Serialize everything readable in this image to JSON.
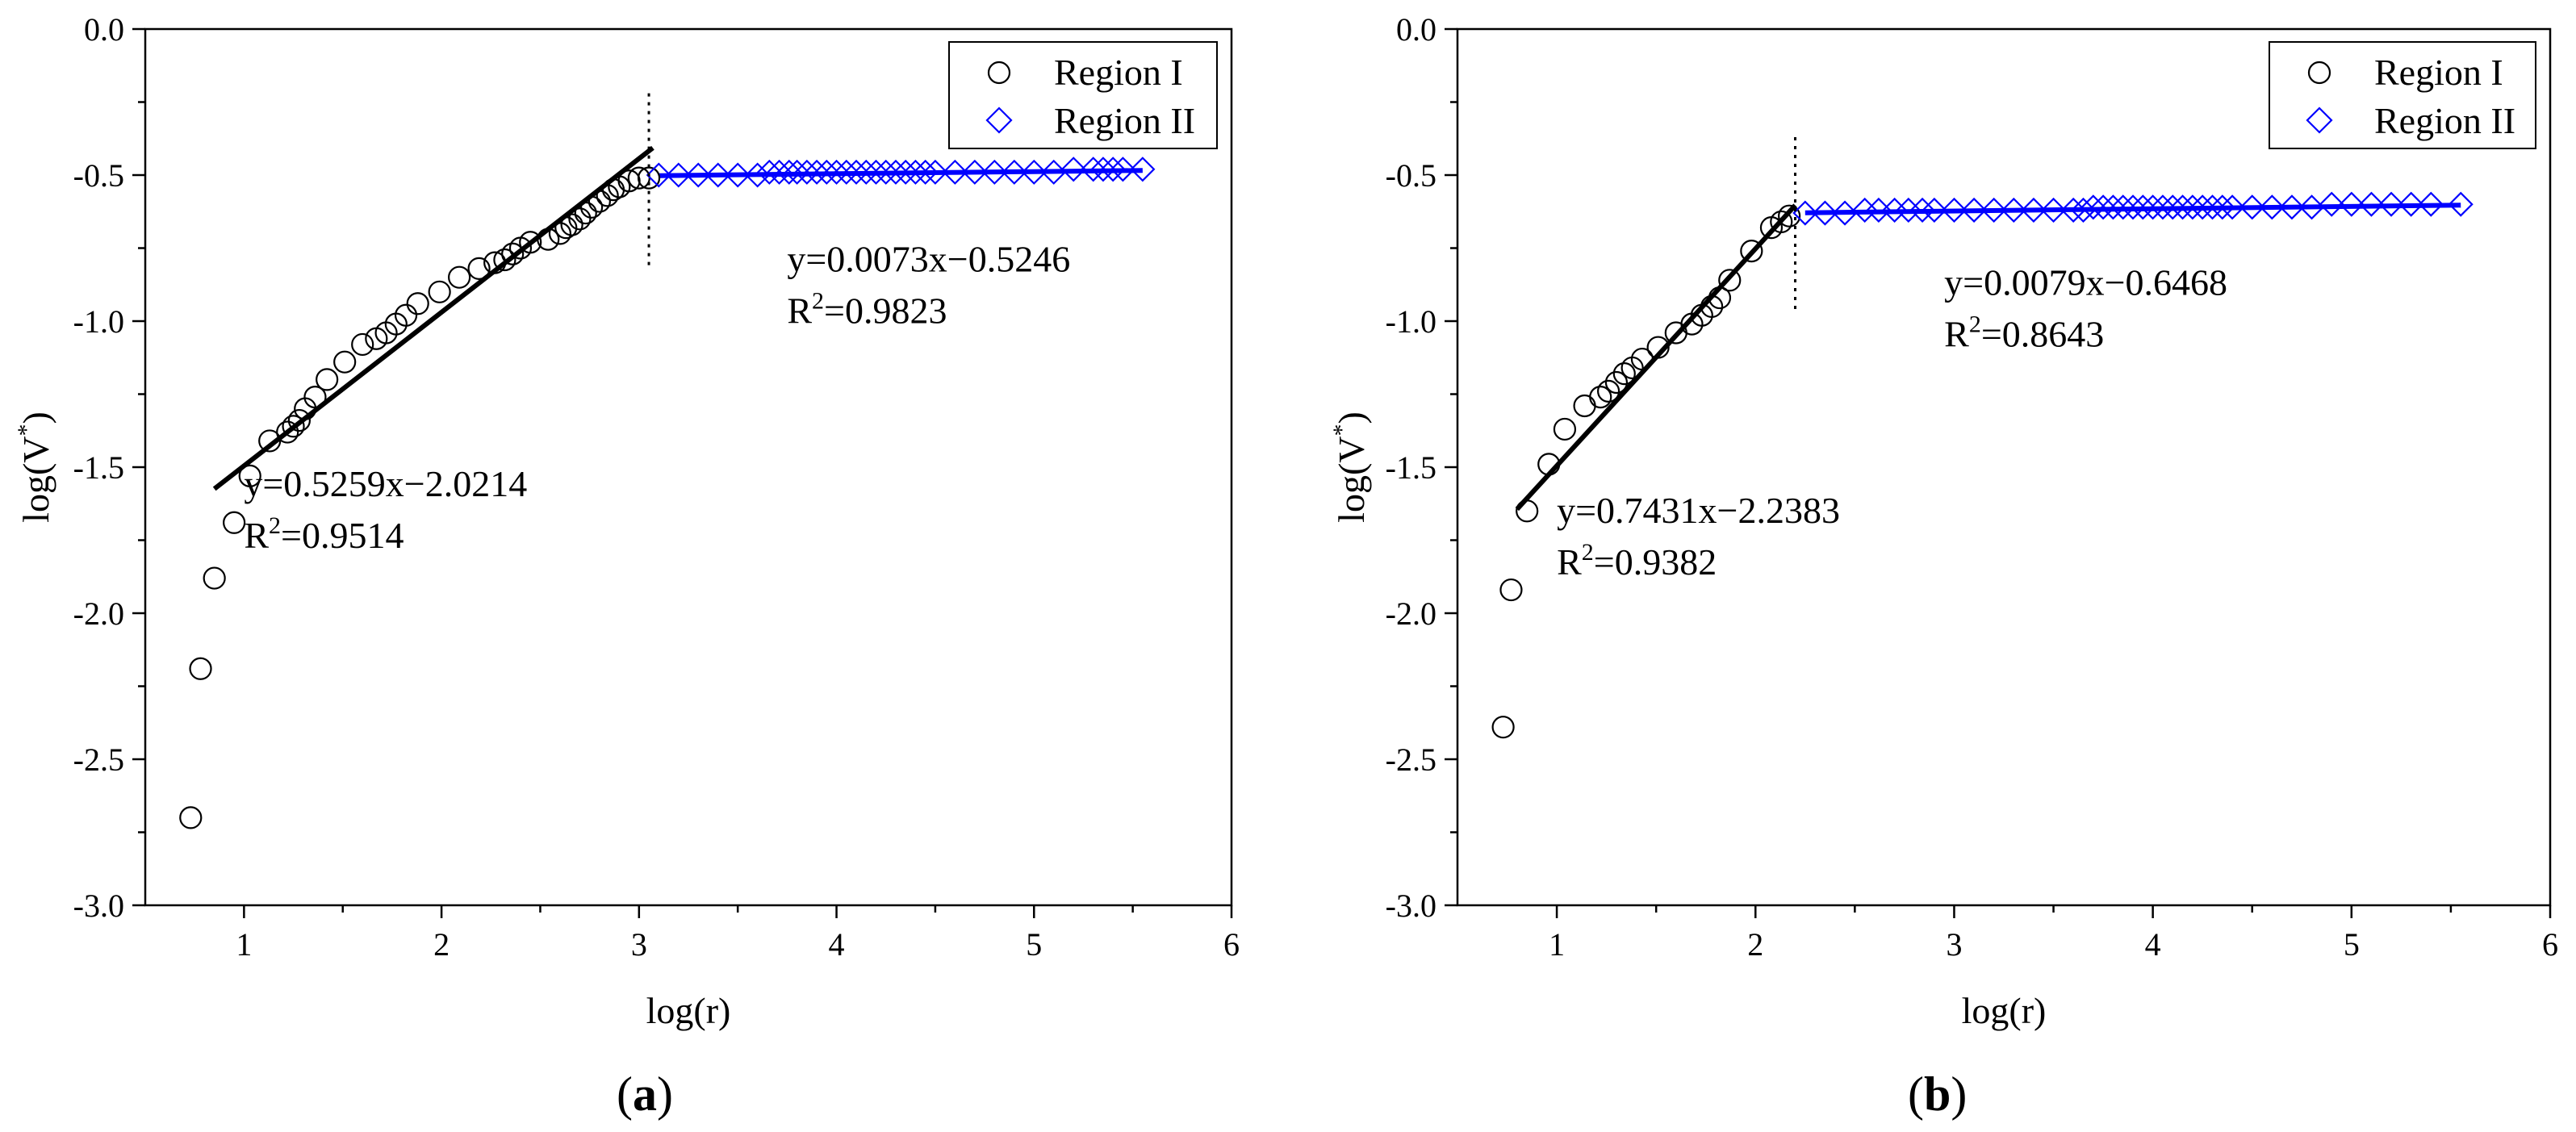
{
  "chart_data": [
    {
      "type": "scatter",
      "panel_label": "(a)",
      "panel_label_bold": "a",
      "xlabel": "log(r)",
      "ylabel_base": "log(V",
      "ylabel_sup": "*",
      "ylabel_close": ")",
      "xlim": [
        0.5,
        6
      ],
      "ylim": [
        -3.0,
        0.0
      ],
      "xticks": [
        1,
        2,
        3,
        4,
        5,
        6
      ],
      "yticks": [
        0.0,
        -0.5,
        -1.0,
        -1.5,
        -2.0,
        -2.5,
        -3.0
      ],
      "xtick_labels": [
        "1",
        "2",
        "3",
        "4",
        "5",
        "6"
      ],
      "ytick_labels": [
        "0.0",
        "-0.5",
        "-1.0",
        "-1.5",
        "-2.0",
        "-2.5",
        "-3.0"
      ],
      "grid": false,
      "legend_position": "top-right",
      "boundary_x": 3.05,
      "boundary_y": [
        -0.82,
        -0.22
      ],
      "series": [
        {
          "name": "Region I",
          "marker": "circle",
          "color": "#000000",
          "x": [
            0.73,
            0.78,
            0.85,
            0.95,
            1.03,
            1.13,
            1.22,
            1.25,
            1.28,
            1.31,
            1.36,
            1.42,
            1.51,
            1.6,
            1.67,
            1.72,
            1.77,
            1.82,
            1.88,
            1.99,
            2.09,
            2.19,
            2.27,
            2.32,
            2.36,
            2.4,
            2.45,
            2.54,
            2.6,
            2.63,
            2.66,
            2.7,
            2.73,
            2.76,
            2.8,
            2.84,
            2.87,
            2.9,
            2.95,
            3.0,
            3.05
          ],
          "y": [
            -2.7,
            -2.19,
            -1.88,
            -1.69,
            -1.53,
            -1.41,
            -1.38,
            -1.36,
            -1.34,
            -1.3,
            -1.26,
            -1.2,
            -1.14,
            -1.08,
            -1.06,
            -1.04,
            -1.01,
            -0.98,
            -0.94,
            -0.9,
            -0.85,
            -0.82,
            -0.8,
            -0.79,
            -0.77,
            -0.75,
            -0.73,
            -0.72,
            -0.7,
            -0.68,
            -0.67,
            -0.65,
            -0.63,
            -0.61,
            -0.59,
            -0.57,
            -0.55,
            -0.54,
            -0.52,
            -0.51,
            -0.51
          ]
        },
        {
          "name": "Region II",
          "marker": "diamond",
          "color": "#0000ff",
          "x": [
            3.1,
            3.2,
            3.3,
            3.4,
            3.5,
            3.6,
            3.66,
            3.71,
            3.76,
            3.8,
            3.85,
            3.9,
            3.95,
            4.0,
            4.05,
            4.1,
            4.15,
            4.2,
            4.25,
            4.3,
            4.35,
            4.4,
            4.45,
            4.5,
            4.6,
            4.7,
            4.8,
            4.9,
            5.0,
            5.1,
            5.2,
            5.3,
            5.35,
            5.4,
            5.45,
            5.55
          ],
          "y": [
            -0.5,
            -0.5,
            -0.5,
            -0.5,
            -0.5,
            -0.5,
            -0.49,
            -0.49,
            -0.49,
            -0.49,
            -0.49,
            -0.49,
            -0.49,
            -0.49,
            -0.49,
            -0.49,
            -0.49,
            -0.49,
            -0.49,
            -0.49,
            -0.49,
            -0.49,
            -0.49,
            -0.49,
            -0.49,
            -0.49,
            -0.49,
            -0.49,
            -0.49,
            -0.49,
            -0.48,
            -0.48,
            -0.48,
            -0.48,
            -0.48,
            -0.48
          ]
        }
      ],
      "fits": [
        {
          "slope": 0.5259,
          "intercept": -2.0214,
          "x_range": [
            0.85,
            3.07
          ],
          "color": "#000000",
          "eq": "y=0.5259x−2.0214",
          "r2_prefix": "R",
          "r2_sup": "2",
          "r2_value": "=0.9514",
          "label_at": [
            1.0,
            -1.6
          ]
        },
        {
          "slope": 0.0073,
          "intercept": -0.5246,
          "x_range": [
            3.1,
            5.55
          ],
          "color": "#0000ff",
          "eq": "y=0.0073x−0.5246",
          "r2_prefix": "R",
          "r2_sup": "2",
          "r2_value": "=0.9823",
          "label_at": [
            3.75,
            -0.83
          ]
        }
      ]
    },
    {
      "type": "scatter",
      "panel_label": "(b)",
      "panel_label_bold": "b",
      "xlabel": "log(r)",
      "ylabel_base": "log(V",
      "ylabel_sup": "*",
      "ylabel_close": ")",
      "xlim": [
        0.5,
        6
      ],
      "ylim": [
        -3.0,
        0.0
      ],
      "xticks": [
        1,
        2,
        3,
        4,
        5,
        6
      ],
      "yticks": [
        0.0,
        -0.5,
        -1.0,
        -1.5,
        -2.0,
        -2.5,
        -3.0
      ],
      "xtick_labels": [
        "1",
        "2",
        "3",
        "4",
        "5",
        "6"
      ],
      "ytick_labels": [
        "0.0",
        "-0.5",
        "-1.0",
        "-1.5",
        "-2.0",
        "-2.5",
        "-3.0"
      ],
      "grid": false,
      "legend_position": "top-right",
      "boundary_x": 2.2,
      "boundary_y": [
        -0.96,
        -0.37
      ],
      "series": [
        {
          "name": "Region I",
          "marker": "circle",
          "color": "#000000",
          "x": [
            0.73,
            0.77,
            0.85,
            0.96,
            1.04,
            1.14,
            1.22,
            1.26,
            1.3,
            1.34,
            1.38,
            1.43,
            1.51,
            1.6,
            1.68,
            1.73,
            1.78,
            1.82,
            1.87,
            1.98,
            2.08,
            2.13,
            2.17
          ],
          "y": [
            -2.39,
            -1.92,
            -1.65,
            -1.49,
            -1.37,
            -1.29,
            -1.26,
            -1.24,
            -1.21,
            -1.18,
            -1.16,
            -1.13,
            -1.09,
            -1.04,
            -1.01,
            -0.98,
            -0.95,
            -0.92,
            -0.86,
            -0.76,
            -0.68,
            -0.66,
            -0.64
          ]
        },
        {
          "name": "Region II",
          "marker": "diamond",
          "color": "#0000ff",
          "x": [
            2.25,
            2.35,
            2.45,
            2.55,
            2.62,
            2.7,
            2.77,
            2.84,
            2.9,
            3.0,
            3.1,
            3.2,
            3.3,
            3.4,
            3.5,
            3.6,
            3.65,
            3.7,
            3.75,
            3.8,
            3.85,
            3.9,
            3.95,
            4.0,
            4.05,
            4.1,
            4.15,
            4.2,
            4.25,
            4.3,
            4.35,
            4.4,
            4.5,
            4.6,
            4.7,
            4.8,
            4.9,
            5.0,
            5.1,
            5.2,
            5.3,
            5.4,
            5.55
          ],
          "y": [
            -0.63,
            -0.63,
            -0.63,
            -0.62,
            -0.62,
            -0.62,
            -0.62,
            -0.62,
            -0.62,
            -0.62,
            -0.62,
            -0.62,
            -0.62,
            -0.62,
            -0.62,
            -0.62,
            -0.62,
            -0.61,
            -0.61,
            -0.61,
            -0.61,
            -0.61,
            -0.61,
            -0.61,
            -0.61,
            -0.61,
            -0.61,
            -0.61,
            -0.61,
            -0.61,
            -0.61,
            -0.61,
            -0.61,
            -0.61,
            -0.61,
            -0.61,
            -0.6,
            -0.6,
            -0.6,
            -0.6,
            -0.6,
            -0.6,
            -0.6
          ]
        }
      ],
      "fits": [
        {
          "slope": 0.7431,
          "intercept": -2.2383,
          "x_range": [
            0.8,
            2.2
          ],
          "color": "#000000",
          "eq": "y=0.7431x−2.2383",
          "r2_prefix": "R",
          "r2_sup": "2",
          "r2_value": "=0.9382",
          "label_at": [
            1.0,
            -1.69
          ]
        },
        {
          "slope": 0.0079,
          "intercept": -0.6468,
          "x_range": [
            2.25,
            5.55
          ],
          "color": "#0000ff",
          "eq": "y=0.0079x−0.6468",
          "r2_prefix": "R",
          "r2_sup": "2",
          "r2_value": "=0.8643",
          "label_at": [
            2.95,
            -0.91
          ]
        }
      ]
    }
  ]
}
